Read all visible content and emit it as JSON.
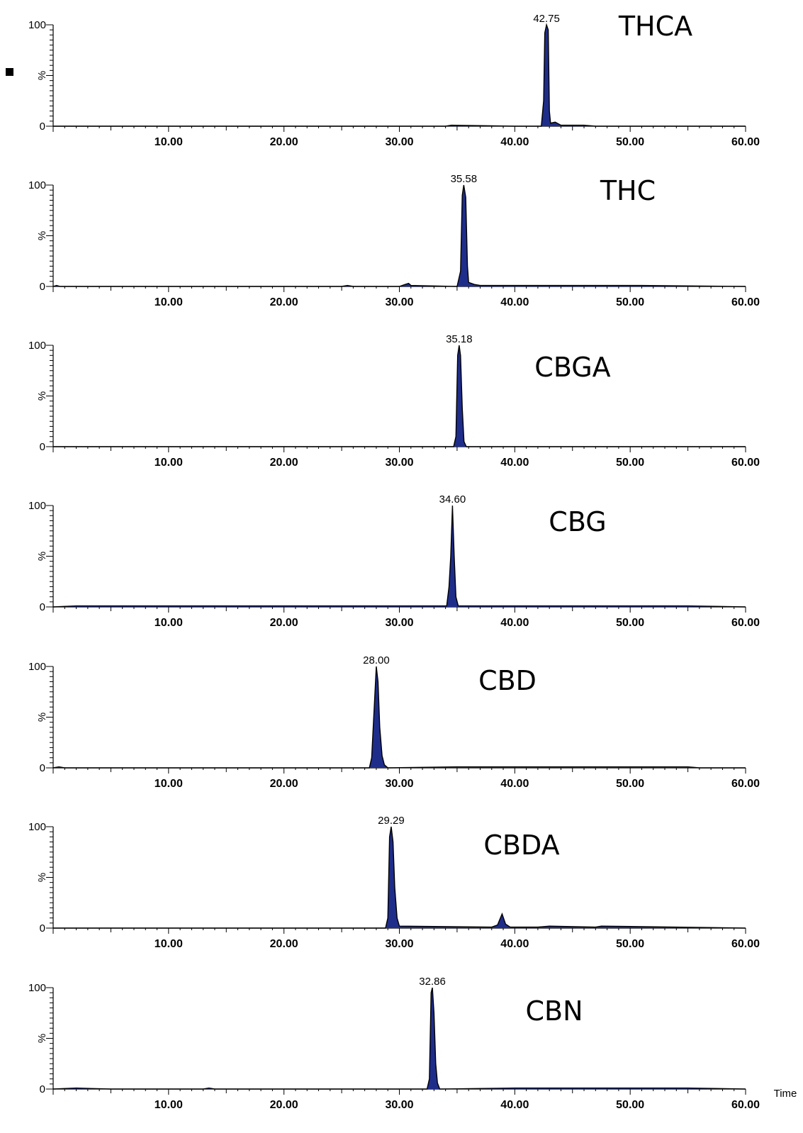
{
  "colors": {
    "peak_fill": "#1f2d8a",
    "axis": "#000000",
    "background": "#ffffff"
  },
  "legend_marker": "black-square",
  "chart_data": [
    {
      "type": "line",
      "name": "THCA",
      "x": [
        0,
        10,
        20,
        30,
        34,
        34.5,
        40,
        42.3,
        42.5,
        42.6,
        42.75,
        42.9,
        43.0,
        43.1,
        43.5,
        44,
        46,
        47,
        50,
        60
      ],
      "y": [
        0,
        0,
        0,
        0,
        0,
        1,
        0,
        0,
        25,
        92,
        100,
        95,
        15,
        3,
        4,
        1,
        1,
        0,
        0,
        0
      ],
      "peak_label": "42.75",
      "xlim": [
        0,
        60
      ],
      "xticks": [
        "10.00",
        "20.00",
        "30.00",
        "40.00",
        "50.00",
        "60.00"
      ],
      "yticks": [
        "0",
        "100"
      ],
      "ylabel": "%"
    },
    {
      "type": "line",
      "name": "THC",
      "x": [
        0,
        0.3,
        0.6,
        1,
        25,
        25.5,
        26,
        30,
        30.5,
        30.8,
        31,
        35,
        35.3,
        35.45,
        35.58,
        35.75,
        35.9,
        36,
        36.5,
        37,
        38,
        43,
        48,
        50,
        51,
        60
      ],
      "y": [
        0,
        1,
        0,
        0,
        0,
        1,
        0,
        0,
        2,
        3,
        1,
        0,
        15,
        90,
        100,
        88,
        20,
        4,
        2,
        1,
        1,
        1,
        1,
        1,
        1,
        0
      ],
      "peak_label": "35.58",
      "xlim": [
        0,
        60
      ],
      "xticks": [
        "10.00",
        "20.00",
        "30.00",
        "40.00",
        "50.00",
        "60.00"
      ],
      "yticks": [
        "0",
        "100"
      ],
      "ylabel": "%"
    },
    {
      "type": "line",
      "name": "CBGA",
      "x": [
        0,
        34.7,
        34.9,
        35.05,
        35.18,
        35.3,
        35.45,
        35.6,
        35.8,
        60
      ],
      "y": [
        0,
        0,
        10,
        90,
        100,
        90,
        38,
        5,
        0,
        0
      ],
      "peak_label": "35.18",
      "xlim": [
        0,
        60
      ],
      "xticks": [
        "10.00",
        "20.00",
        "30.00",
        "40.00",
        "50.00",
        "60.00"
      ],
      "yticks": [
        "0",
        "100"
      ],
      "ylabel": "%"
    },
    {
      "type": "line",
      "name": "CBG",
      "x": [
        0,
        2,
        5,
        10,
        15,
        20,
        25,
        30,
        34.1,
        34.3,
        34.45,
        34.6,
        34.75,
        34.9,
        35.1,
        40,
        45,
        50,
        55,
        60
      ],
      "y": [
        0,
        1,
        1,
        1,
        1,
        1,
        1,
        1,
        1,
        20,
        50,
        100,
        50,
        10,
        1,
        1,
        1,
        1,
        1,
        0
      ],
      "peak_label": "34.60",
      "xlim": [
        0,
        60
      ],
      "xticks": [
        "10.00",
        "20.00",
        "30.00",
        "40.00",
        "50.00",
        "60.00"
      ],
      "yticks": [
        "0",
        "100"
      ],
      "ylabel": "%"
    },
    {
      "type": "line",
      "name": "CBD",
      "x": [
        0,
        0.5,
        1,
        27.4,
        27.6,
        27.8,
        28.0,
        28.15,
        28.3,
        28.5,
        28.7,
        29,
        35,
        40,
        45,
        50,
        55,
        56,
        60
      ],
      "y": [
        0,
        1,
        0,
        0,
        10,
        55,
        100,
        85,
        40,
        12,
        3,
        0,
        1,
        1,
        1,
        1,
        1,
        0,
        0
      ],
      "peak_label": "28.00",
      "xlim": [
        0,
        60
      ],
      "xticks": [
        "10.00",
        "20.00",
        "30.00",
        "40.00",
        "50.00",
        "60.00"
      ],
      "yticks": [
        "0",
        "100"
      ],
      "ylabel": "%"
    },
    {
      "type": "line",
      "name": "CBDA",
      "x": [
        0,
        28.8,
        29.0,
        29.15,
        29.29,
        29.45,
        29.6,
        29.8,
        30.0,
        38.0,
        38.5,
        38.9,
        39.2,
        39.6,
        40,
        42,
        43,
        47,
        47.5,
        60
      ],
      "y": [
        0,
        0,
        10,
        90,
        100,
        85,
        40,
        10,
        2,
        1,
        3,
        14,
        4,
        1,
        1,
        1,
        2,
        1,
        2,
        0
      ],
      "peak_label": "29.29",
      "xlim": [
        0,
        60
      ],
      "xticks": [
        "10.00",
        "20.00",
        "30.00",
        "40.00",
        "50.00",
        "60.00"
      ],
      "yticks": [
        "0",
        "100"
      ],
      "ylabel": "%"
    },
    {
      "type": "line",
      "name": "CBN",
      "x": [
        0,
        2,
        5,
        13,
        13.5,
        14,
        32.4,
        32.6,
        32.75,
        32.86,
        33.0,
        33.15,
        33.3,
        33.5,
        40,
        45,
        50,
        55,
        60
      ],
      "y": [
        0,
        1,
        0,
        0,
        1,
        0,
        0,
        10,
        95,
        100,
        75,
        25,
        6,
        0,
        1,
        1,
        1,
        1,
        0
      ],
      "peak_label": "32.86",
      "xlim": [
        0,
        60
      ],
      "xticks": [
        "10.00",
        "20.00",
        "30.00",
        "40.00",
        "50.00",
        "60.00"
      ],
      "yticks": [
        "0",
        "100"
      ],
      "ylabel": "%",
      "xlabel": "Time"
    }
  ]
}
